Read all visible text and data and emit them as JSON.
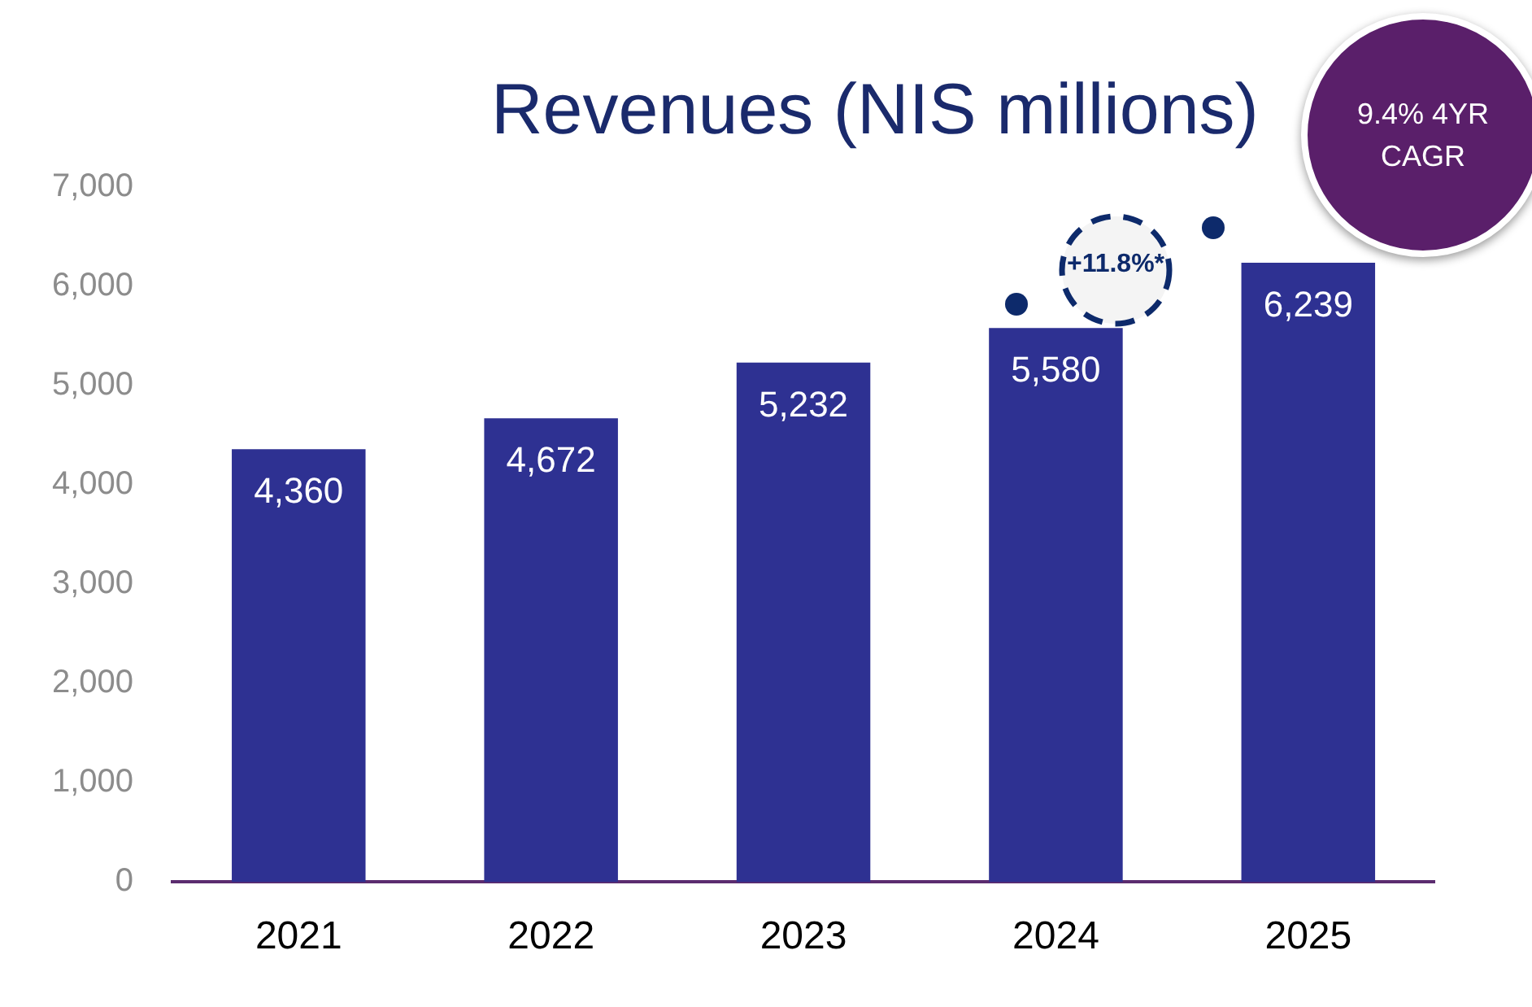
{
  "chart_data": {
    "type": "bar",
    "title": "Revenues (NIS millions)",
    "categories": [
      "2021",
      "2022",
      "2023",
      "2024",
      "2025"
    ],
    "series": [
      {
        "color": "#2e3192",
        "values": [
          4360,
          4672,
          5232,
          5580,
          6239
        ]
      }
    ],
    "value_labels": [
      "4,360",
      "4,672",
      "5,232",
      "5,580",
      "6,239"
    ],
    "ylim": [
      0,
      7000
    ],
    "yticks": [
      {
        "value": 0,
        "label": "0"
      },
      {
        "value": 1000,
        "label": "1,000"
      },
      {
        "value": 2000,
        "label": "2,000"
      },
      {
        "value": 3000,
        "label": "3,000"
      },
      {
        "value": 4000,
        "label": "4,000"
      },
      {
        "value": 5000,
        "label": "5,000"
      },
      {
        "value": 6000,
        "label": "6,000"
      },
      {
        "value": 7000,
        "label": "7,000"
      }
    ],
    "grid": false,
    "legend": false,
    "annotations": [
      "+11.8%*",
      "9.4% 4YR CAGR"
    ]
  }
}
